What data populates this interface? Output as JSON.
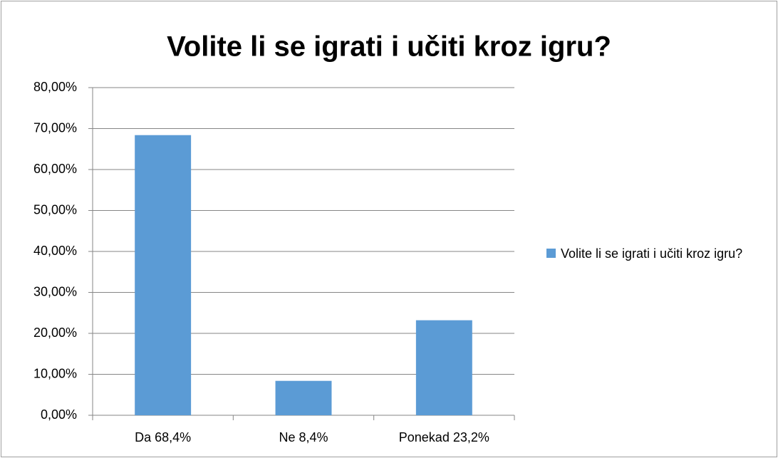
{
  "chart_data": {
    "type": "bar",
    "title": "Volite li se igrati i učiti kroz igru?",
    "categories": [
      "Da 68,4%",
      "Ne 8,4%",
      "Ponekad 23,2%"
    ],
    "series": [
      {
        "name": "Volite li se igrati i učiti kroz igru?",
        "color": "#5b9bd5",
        "values": [
          68.4,
          8.4,
          23.2
        ]
      }
    ],
    "ylim": [
      0,
      80
    ],
    "yticks": [
      {
        "value": 0,
        "label": "0,00%"
      },
      {
        "value": 10,
        "label": "10,00%"
      },
      {
        "value": 20,
        "label": "20,00%"
      },
      {
        "value": 30,
        "label": "30,00%"
      },
      {
        "value": 40,
        "label": "40,00%"
      },
      {
        "value": 50,
        "label": "50,00%"
      },
      {
        "value": 60,
        "label": "60,00%"
      },
      {
        "value": 70,
        "label": "70,00%"
      },
      {
        "value": 80,
        "label": "80,00%"
      }
    ],
    "grid": true,
    "legend": "right"
  }
}
